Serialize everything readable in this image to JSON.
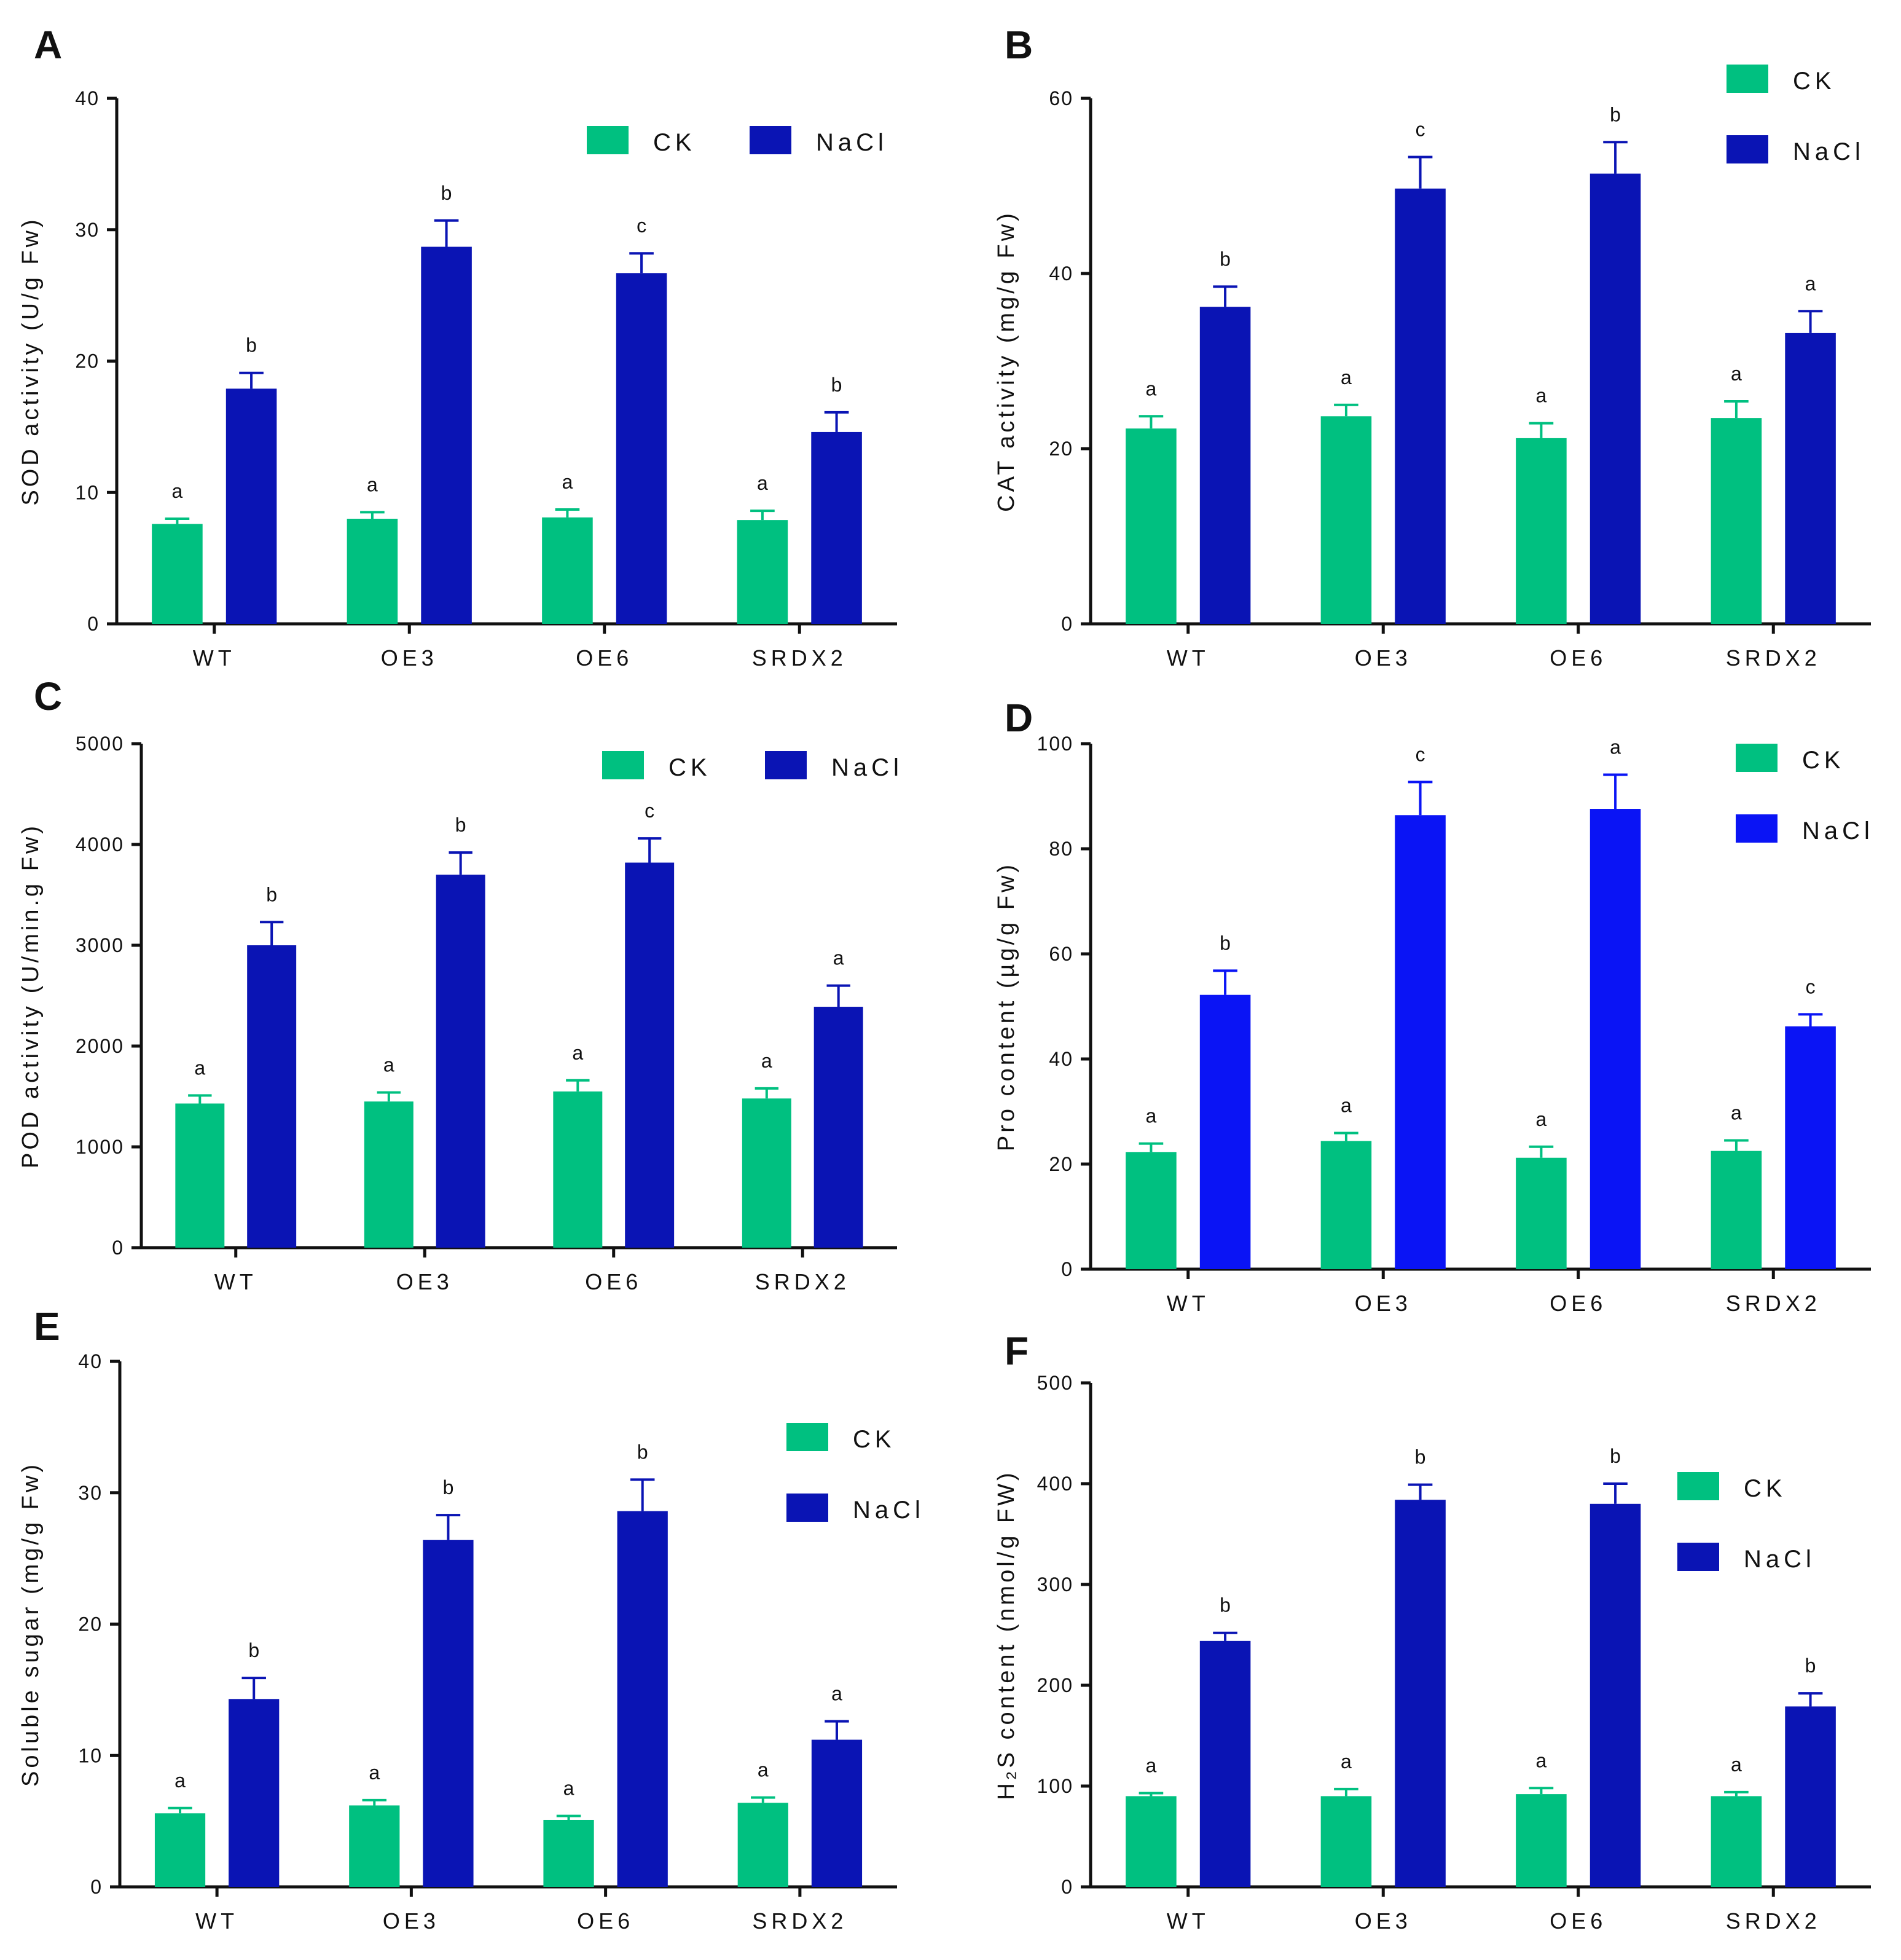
{
  "chart_data": [
    {
      "panel": "A",
      "type": "bar",
      "categories": [
        "WT",
        "OE3",
        "OE6",
        "SRDX2"
      ],
      "ylabel": "SOD activity (U/g Fw)",
      "ylim": [
        0,
        40
      ],
      "yticks": [
        "0",
        "10",
        "20",
        "30",
        "40"
      ],
      "legend": [
        "CK",
        "NaCl"
      ],
      "series": [
        {
          "name": "CK",
          "color": "#00c080",
          "values": [
            7.6,
            8.0,
            8.1,
            7.9
          ],
          "errors": [
            0.4,
            0.5,
            0.6,
            0.7
          ],
          "labels": [
            "a",
            "a",
            "a",
            "a"
          ]
        },
        {
          "name": "NaCl",
          "color": "#0a14b4",
          "values": [
            17.9,
            28.7,
            26.7,
            14.6
          ],
          "errors": [
            1.2,
            2.0,
            1.5,
            1.5
          ],
          "labels": [
            "b",
            "b",
            "c",
            "b"
          ]
        }
      ]
    },
    {
      "panel": "B",
      "type": "bar",
      "categories": [
        "WT",
        "OE3",
        "OE6",
        "SRDX2"
      ],
      "ylabel": "CAT activity (mg/g Fw)",
      "ylim": [
        0,
        60
      ],
      "yticks": [
        "0",
        "20",
        "40",
        "60"
      ],
      "legend": [
        "CK",
        "NaCl"
      ],
      "series": [
        {
          "name": "CK",
          "color": "#00c080",
          "values": [
            22.3,
            23.7,
            21.2,
            23.5
          ],
          "errors": [
            1.4,
            1.3,
            1.7,
            1.9
          ],
          "labels": [
            "a",
            "a",
            "a",
            "a"
          ]
        },
        {
          "name": "NaCl",
          "color": "#0a14b4",
          "values": [
            36.2,
            49.7,
            51.4,
            33.2
          ],
          "errors": [
            2.3,
            3.6,
            3.6,
            2.5
          ],
          "labels": [
            "b",
            "c",
            "b",
            "a"
          ]
        }
      ]
    },
    {
      "panel": "C",
      "type": "bar",
      "categories": [
        "WT",
        "OE3",
        "OE6",
        "SRDX2"
      ],
      "ylabel": "POD activity (U/min.g Fw)",
      "ylim": [
        0,
        5000
      ],
      "yticks": [
        "0",
        "1000",
        "2000",
        "3000",
        "4000",
        "5000"
      ],
      "legend": [
        "CK",
        "NaCl"
      ],
      "series": [
        {
          "name": "CK",
          "color": "#00c080",
          "values": [
            1430,
            1450,
            1550,
            1480
          ],
          "errors": [
            80,
            90,
            110,
            100
          ],
          "labels": [
            "a",
            "a",
            "a",
            "a"
          ]
        },
        {
          "name": "NaCl",
          "color": "#0a14b4",
          "values": [
            3000,
            3700,
            3820,
            2390
          ],
          "errors": [
            230,
            220,
            240,
            210
          ],
          "labels": [
            "b",
            "b",
            "c",
            "a"
          ]
        }
      ]
    },
    {
      "panel": "D",
      "type": "bar",
      "categories": [
        "WT",
        "OE3",
        "OE6",
        "SRDX2"
      ],
      "ylabel": "Pro content (µg/g Fw)",
      "ylim": [
        0,
        100
      ],
      "yticks": [
        "0",
        "20",
        "40",
        "60",
        "80",
        "100"
      ],
      "legend": [
        "CK",
        "NaCl"
      ],
      "series": [
        {
          "name": "CK",
          "color": "#00c080",
          "values": [
            22.3,
            24.4,
            21.2,
            22.5
          ],
          "errors": [
            1.6,
            1.5,
            2.1,
            2.0
          ],
          "labels": [
            "a",
            "a",
            "a",
            "a"
          ]
        },
        {
          "name": "NaCl",
          "color": "#0a14f5",
          "values": [
            52.2,
            86.4,
            87.6,
            46.2
          ],
          "errors": [
            4.6,
            6.3,
            6.5,
            2.3
          ],
          "labels": [
            "b",
            "c",
            "a",
            "c"
          ]
        }
      ]
    },
    {
      "panel": "E",
      "type": "bar",
      "categories": [
        "WT",
        "OE3",
        "OE6",
        "SRDX2"
      ],
      "ylabel": "Soluble sugar (mg/g Fw)",
      "ylim": [
        0,
        40
      ],
      "yticks": [
        "0",
        "10",
        "20",
        "30",
        "40"
      ],
      "legend": [
        "CK",
        "NaCl"
      ],
      "series": [
        {
          "name": "CK",
          "color": "#00c080",
          "values": [
            5.6,
            6.2,
            5.1,
            6.4
          ],
          "errors": [
            0.4,
            0.4,
            0.3,
            0.4
          ],
          "labels": [
            "a",
            "a",
            "a",
            "a"
          ]
        },
        {
          "name": "NaCl",
          "color": "#0a14b4",
          "values": [
            14.3,
            26.4,
            28.6,
            11.2
          ],
          "errors": [
            1.6,
            1.9,
            2.4,
            1.4
          ],
          "labels": [
            "b",
            "b",
            "b",
            "a"
          ]
        }
      ]
    },
    {
      "panel": "F",
      "type": "bar",
      "categories": [
        "WT",
        "OE3",
        "OE6",
        "SRDX2"
      ],
      "ylabel": "H₂S content (nmol/g FW)",
      "ylim": [
        0,
        500
      ],
      "yticks": [
        "0",
        "100",
        "200",
        "300",
        "400",
        "500"
      ],
      "legend": [
        "CK",
        "NaCl"
      ],
      "series": [
        {
          "name": "CK",
          "color": "#00c080",
          "values": [
            90,
            90,
            92,
            90
          ],
          "errors": [
            3,
            7,
            6,
            4
          ],
          "labels": [
            "a",
            "a",
            "a",
            "a"
          ]
        },
        {
          "name": "NaCl",
          "color": "#0a14b4",
          "values": [
            244,
            384,
            380,
            179
          ],
          "errors": [
            8,
            15,
            20,
            13
          ],
          "labels": [
            "b",
            "b",
            "b",
            "b"
          ]
        }
      ]
    }
  ]
}
